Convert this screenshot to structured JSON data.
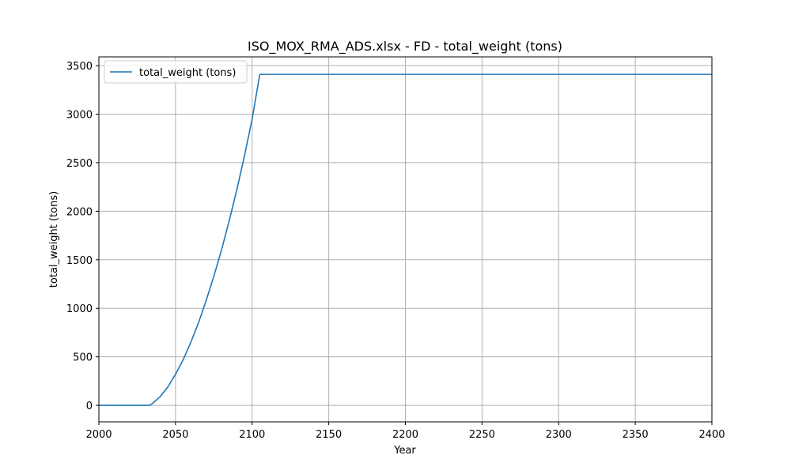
{
  "chart_data": {
    "type": "line",
    "title": "ISO_MOX_RMA_ADS.xlsx - FD - total_weight (tons)",
    "xlabel": "Year",
    "ylabel": "total_weight (tons)",
    "xlim": [
      2000,
      2400
    ],
    "ylim": [
      -170,
      3590
    ],
    "xticks": [
      2000,
      2050,
      2100,
      2150,
      2200,
      2250,
      2300,
      2350,
      2400
    ],
    "yticks": [
      0,
      500,
      1000,
      1500,
      2000,
      2500,
      3000,
      3500
    ],
    "grid": true,
    "legend_position": "top-left",
    "series": [
      {
        "name": "total_weight (tons)",
        "color": "#1f77b4",
        "x": [
          2000,
          2010,
          2020,
          2030,
          2033,
          2035,
          2040,
          2045,
          2050,
          2055,
          2060,
          2065,
          2070,
          2075,
          2080,
          2085,
          2090,
          2095,
          2100,
          2105,
          2110,
          2150,
          2200,
          2250,
          2300,
          2350,
          2400
        ],
        "y": [
          0,
          0,
          0,
          0,
          0,
          20,
          90,
          190,
          320,
          470,
          650,
          850,
          1080,
          1330,
          1600,
          1900,
          2220,
          2570,
          2950,
          3410,
          3410,
          3410,
          3410,
          3410,
          3410,
          3410,
          3410
        ]
      }
    ]
  }
}
